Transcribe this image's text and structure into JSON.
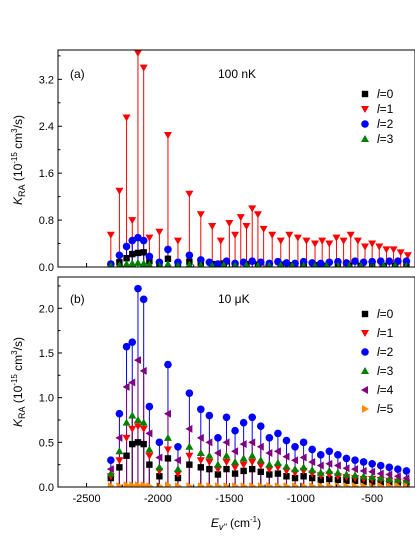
{
  "chart_data": [
    {
      "type": "scatter",
      "panel_label": "(a)",
      "annotation": "100 nK",
      "ylabel": "K_RA (10^-15 cm^3/s)",
      "xlim": [
        -2700,
        -200
      ],
      "ylim": [
        0,
        3.7
      ],
      "yticks": [
        "0.0",
        "0.8",
        "1.6",
        "2.4",
        "3.2"
      ],
      "legend_position": "top-right",
      "stems": true,
      "series": [
        {
          "name": "l=0",
          "legend_l": "l",
          "legend_v": "=0",
          "marker": "square",
          "color": "#000000",
          "x": [
            -2330,
            -2270,
            -2220,
            -2180,
            -2140,
            -2100,
            -2060,
            -1990,
            -1930,
            -1860,
            -1780,
            -1700,
            -1620,
            -1540,
            -1460,
            -1380,
            -1300,
            -1220,
            -1140,
            -1060,
            -980,
            -900,
            -820,
            -740,
            -660,
            -580,
            -500,
            -420,
            -340,
            -260
          ],
          "y": [
            0.04,
            0.08,
            0.15,
            0.22,
            0.24,
            0.25,
            0.1,
            0.05,
            0.14,
            0.05,
            0.09,
            0.07,
            0.05,
            0.06,
            0.03,
            0.05,
            0.04,
            0.03,
            0.04,
            0.03,
            0.03,
            0.03,
            0.02,
            0.03,
            0.02,
            0.02,
            0.02,
            0.02,
            0.02,
            0.01
          ]
        },
        {
          "name": "l=1",
          "legend_l": "l",
          "legend_v": "=1",
          "marker": "triangle-down",
          "color": "#ff0000",
          "x": [
            -2330,
            -2270,
            -2220,
            -2180,
            -2140,
            -2100,
            -2060,
            -1990,
            -1930,
            -1860,
            -1780,
            -1700,
            -1620,
            -1560,
            -1500,
            -1460,
            -1420,
            -1380,
            -1340,
            -1300,
            -1260,
            -1200,
            -1140,
            -1080,
            -1020,
            -960,
            -900,
            -850,
            -800,
            -750,
            -700,
            -650,
            -600,
            -550,
            -500,
            -450,
            -400,
            -350,
            -300,
            -250
          ],
          "y": [
            0.55,
            1.3,
            2.55,
            0.8,
            3.65,
            3.4,
            0.5,
            0.6,
            2.25,
            0.45,
            1.25,
            0.9,
            0.7,
            0.45,
            0.75,
            0.55,
            0.85,
            0.7,
            1.0,
            0.9,
            0.65,
            0.55,
            0.45,
            0.55,
            0.5,
            0.45,
            0.4,
            0.45,
            0.4,
            0.5,
            0.45,
            0.55,
            0.45,
            0.35,
            0.4,
            0.35,
            0.3,
            0.3,
            0.25,
            0.2
          ]
        },
        {
          "name": "l=2",
          "legend_l": "l",
          "legend_v": "=2",
          "marker": "circle",
          "color": "#0000ff",
          "x": [
            -2330,
            -2270,
            -2220,
            -2180,
            -2140,
            -2100,
            -2060,
            -1990,
            -1930,
            -1860,
            -1780,
            -1700,
            -1640,
            -1580,
            -1520,
            -1460,
            -1400,
            -1340,
            -1280,
            -1220,
            -1160,
            -1100,
            -1040,
            -980,
            -920,
            -860,
            -800,
            -740,
            -680,
            -620,
            -560,
            -500,
            -440,
            -380,
            -320,
            -260
          ],
          "y": [
            0.05,
            0.2,
            0.35,
            0.45,
            0.5,
            0.45,
            0.18,
            0.08,
            0.3,
            0.08,
            0.2,
            0.12,
            0.08,
            0.05,
            0.1,
            0.06,
            0.08,
            0.1,
            0.08,
            0.06,
            0.09,
            0.07,
            0.06,
            0.09,
            0.07,
            0.06,
            0.08,
            0.09,
            0.07,
            0.1,
            0.08,
            0.09,
            0.1,
            0.1,
            0.1,
            0.1
          ]
        },
        {
          "name": "l=3",
          "legend_l": "l",
          "legend_v": "=3",
          "marker": "triangle-up",
          "color": "#008000",
          "x": [
            -2330,
            -2270,
            -2220,
            -2180,
            -2140,
            -2100,
            -2060,
            -1990,
            -1930,
            -1860,
            -1780,
            -1700,
            -1620,
            -1540,
            -1460,
            -1380,
            -1300,
            -1220,
            -1140,
            -1060,
            -980,
            -900,
            -820,
            -740,
            -660,
            -580,
            -500,
            -420,
            -340,
            -260
          ],
          "y": [
            0.02,
            0.03,
            0.05,
            0.06,
            0.07,
            0.06,
            0.04,
            0.02,
            0.05,
            0.02,
            0.04,
            0.03,
            0.02,
            0.03,
            0.02,
            0.03,
            0.02,
            0.02,
            0.03,
            0.02,
            0.02,
            0.02,
            0.02,
            0.02,
            0.02,
            0.02,
            0.02,
            0.02,
            0.02,
            0.02
          ]
        }
      ]
    },
    {
      "type": "scatter",
      "panel_label": "(b)",
      "annotation": "10   μK",
      "ylabel": "K_RA (10^-15 cm^3/s)",
      "xlabel": "E_v\" (cm^-1)",
      "xlim": [
        -2700,
        -200
      ],
      "ylim": [
        0,
        2.35
      ],
      "yticks": [
        "0.0",
        "0.5",
        "1.0",
        "1.5",
        "2.0"
      ],
      "xticks": [
        "-2500",
        "-2000",
        "-1500",
        "-1000",
        "-500"
      ],
      "legend_position": "top-right",
      "stems": true,
      "series": [
        {
          "name": "l=0",
          "legend_l": "l",
          "legend_v": "=0",
          "marker": "square",
          "color": "#000000",
          "x": [
            -2330,
            -2270,
            -2220,
            -2180,
            -2140,
            -2100,
            -2060,
            -1990,
            -1930,
            -1860,
            -1780,
            -1700,
            -1640,
            -1580,
            -1520,
            -1460,
            -1400,
            -1340,
            -1280,
            -1220,
            -1160,
            -1100,
            -1040,
            -980,
            -920,
            -860,
            -800,
            -740,
            -680,
            -620,
            -560,
            -500,
            -440,
            -380,
            -320,
            -260
          ],
          "y": [
            0.1,
            0.22,
            0.35,
            0.48,
            0.5,
            0.48,
            0.25,
            0.12,
            0.32,
            0.1,
            0.25,
            0.22,
            0.2,
            0.14,
            0.2,
            0.15,
            0.18,
            0.2,
            0.17,
            0.14,
            0.15,
            0.12,
            0.1,
            0.12,
            0.1,
            0.08,
            0.09,
            0.08,
            0.07,
            0.07,
            0.06,
            0.06,
            0.05,
            0.05,
            0.04,
            0.04
          ]
        },
        {
          "name": "l=1",
          "legend_l": "l",
          "legend_v": "=1",
          "marker": "triangle-down",
          "color": "#ff0000",
          "x": [
            -2330,
            -2270,
            -2220,
            -2180,
            -2140,
            -2100,
            -2060,
            -1990,
            -1930,
            -1860,
            -1780,
            -1700,
            -1640,
            -1580,
            -1520,
            -1460,
            -1400,
            -1340,
            -1280,
            -1220,
            -1160,
            -1100,
            -1040,
            -980,
            -920,
            -860,
            -800,
            -740,
            -680,
            -620,
            -560,
            -500,
            -440,
            -380,
            -320,
            -260
          ],
          "y": [
            0.12,
            0.3,
            0.55,
            0.65,
            0.68,
            0.65,
            0.35,
            0.18,
            0.42,
            0.15,
            0.35,
            0.3,
            0.28,
            0.2,
            0.28,
            0.22,
            0.25,
            0.28,
            0.24,
            0.2,
            0.22,
            0.18,
            0.16,
            0.18,
            0.15,
            0.13,
            0.14,
            0.12,
            0.11,
            0.1,
            0.09,
            0.09,
            0.08,
            0.07,
            0.06,
            0.05
          ]
        },
        {
          "name": "l=2",
          "legend_l": "l",
          "legend_v": "=2",
          "marker": "circle",
          "color": "#0000ff",
          "x": [
            -2330,
            -2270,
            -2220,
            -2180,
            -2140,
            -2100,
            -2060,
            -1990,
            -1930,
            -1860,
            -1780,
            -1700,
            -1640,
            -1580,
            -1520,
            -1460,
            -1400,
            -1340,
            -1280,
            -1220,
            -1160,
            -1100,
            -1040,
            -980,
            -920,
            -860,
            -800,
            -740,
            -680,
            -620,
            -560,
            -500,
            -440,
            -380,
            -320,
            -260
          ],
          "y": [
            0.3,
            0.82,
            1.57,
            1.62,
            2.22,
            2.1,
            0.9,
            0.5,
            1.37,
            0.45,
            1.05,
            0.87,
            0.8,
            0.55,
            0.78,
            0.63,
            0.72,
            0.78,
            0.68,
            0.55,
            0.6,
            0.52,
            0.45,
            0.5,
            0.42,
            0.36,
            0.4,
            0.36,
            0.32,
            0.3,
            0.28,
            0.26,
            0.24,
            0.22,
            0.2,
            0.18
          ]
        },
        {
          "name": "l=3",
          "legend_l": "l",
          "legend_v": "=3",
          "marker": "triangle-up",
          "color": "#008000",
          "x": [
            -2330,
            -2270,
            -2220,
            -2180,
            -2140,
            -2100,
            -2060,
            -1990,
            -1930,
            -1860,
            -1780,
            -1700,
            -1640,
            -1580,
            -1520,
            -1460,
            -1400,
            -1340,
            -1280,
            -1220,
            -1160,
            -1100,
            -1040,
            -980,
            -920,
            -860,
            -800,
            -740,
            -680,
            -620,
            -560,
            -500,
            -440,
            -380,
            -320,
            -260
          ],
          "y": [
            0.15,
            0.4,
            0.72,
            0.8,
            0.75,
            0.72,
            0.42,
            0.22,
            0.55,
            0.2,
            0.45,
            0.38,
            0.35,
            0.25,
            0.35,
            0.28,
            0.32,
            0.35,
            0.3,
            0.25,
            0.27,
            0.23,
            0.2,
            0.22,
            0.19,
            0.16,
            0.18,
            0.16,
            0.14,
            0.13,
            0.12,
            0.11,
            0.1,
            0.09,
            0.08,
            0.07
          ]
        },
        {
          "name": "l=4",
          "legend_l": "l",
          "legend_v": "=4",
          "marker": "triangle-left",
          "color": "#800080",
          "x": [
            -2330,
            -2270,
            -2220,
            -2180,
            -2140,
            -2100,
            -2060,
            -1990,
            -1930,
            -1860,
            -1780,
            -1700,
            -1640,
            -1580,
            -1520,
            -1460,
            -1400,
            -1340,
            -1280,
            -1220,
            -1160,
            -1100,
            -1040,
            -980,
            -920,
            -860,
            -800,
            -740,
            -680,
            -620,
            -560,
            -500,
            -440,
            -380,
            -320,
            -260
          ],
          "y": [
            0.2,
            0.55,
            1.12,
            1.17,
            1.42,
            1.3,
            0.6,
            0.33,
            0.82,
            0.3,
            0.65,
            0.55,
            0.5,
            0.38,
            0.5,
            0.4,
            0.48,
            0.5,
            0.45,
            0.38,
            0.4,
            0.34,
            0.3,
            0.33,
            0.28,
            0.24,
            0.26,
            0.24,
            0.21,
            0.2,
            0.18,
            0.17,
            0.15,
            0.14,
            0.12,
            0.1
          ]
        },
        {
          "name": "l=5",
          "legend_l": "l",
          "legend_v": "=5",
          "marker": "triangle-right",
          "color": "#ff8c00",
          "x": [
            -2330,
            -2270,
            -2220,
            -2180,
            -2140,
            -2100,
            -2060,
            -1990,
            -1930,
            -1860,
            -1780,
            -1700,
            -1640,
            -1580,
            -1520,
            -1460,
            -1400,
            -1340,
            -1280,
            -1220,
            -1160,
            -1100,
            -1040,
            -980,
            -920,
            -860,
            -800,
            -740,
            -680,
            -620,
            -560,
            -500,
            -440,
            -380,
            -320,
            -260
          ],
          "y": [
            0.01,
            0.01,
            0.02,
            0.02,
            0.02,
            0.02,
            0.01,
            0.01,
            0.02,
            0.01,
            0.01,
            0.01,
            0.01,
            0.01,
            0.01,
            0.01,
            0.01,
            0.01,
            0.01,
            0.01,
            0.01,
            0.01,
            0.01,
            0.01,
            0.01,
            0.01,
            0.01,
            0.01,
            0.01,
            0.01,
            0.01,
            0.01,
            0.01,
            0.01,
            0.01,
            0.01
          ]
        }
      ]
    }
  ]
}
